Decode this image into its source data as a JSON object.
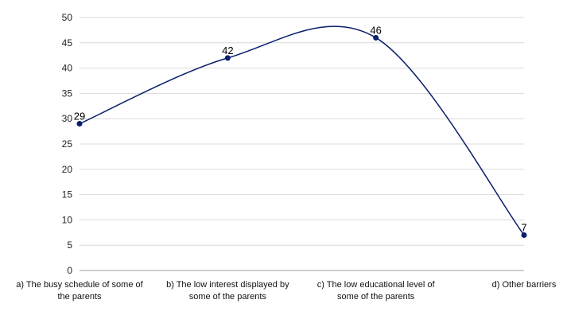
{
  "chart_data": {
    "type": "line",
    "title": "",
    "xlabel": "",
    "ylabel": "",
    "categories": [
      [
        "a) The busy schedule of some of",
        "the parents"
      ],
      [
        "b) The low interest displayed by",
        "some of the parents"
      ],
      [
        "c) The low educational level of",
        "some of the parents"
      ],
      [
        "d) Other barriers"
      ]
    ],
    "series": [
      {
        "values": [
          29,
          42,
          46,
          7
        ],
        "color": "#0a1f6b"
      }
    ],
    "data_labels": [
      "29",
      "42",
      "46",
      "7"
    ],
    "ylim": [
      0,
      50
    ],
    "yticks": [
      "0",
      "5",
      "10",
      "15",
      "20",
      "25",
      "30",
      "35",
      "40",
      "45",
      "50"
    ],
    "grid": true,
    "smooth": true,
    "legend": "none"
  }
}
